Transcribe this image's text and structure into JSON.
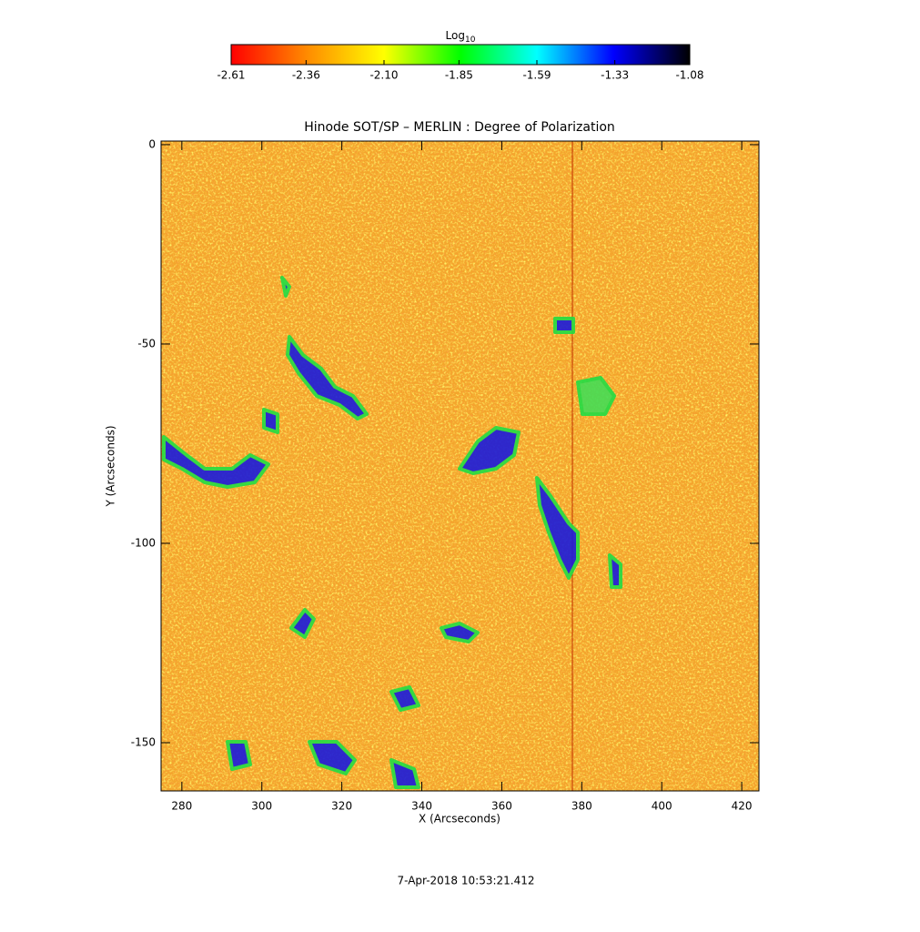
{
  "chart_data": {
    "type": "heatmap",
    "title": "Hinode SOT/SP – MERLIN : Degree of Polarization",
    "xlabel": "X (Arcseconds)",
    "ylabel": "Y (Arcseconds)",
    "xlim": [
      274.8,
      424.3
    ],
    "ylim": [
      -162.1,
      0.9
    ],
    "xticks": [
      280,
      300,
      320,
      340,
      360,
      380,
      400,
      420
    ],
    "yticks": [
      0,
      -50,
      -100,
      -150
    ],
    "colorbar": {
      "label": "Log",
      "label_sub": "10",
      "lim": [
        -2.61,
        -1.08
      ],
      "ticks": [
        -2.61,
        -2.36,
        {
          "value": -2.1,
          "label": "-2.10"
        },
        -1.85,
        -1.59,
        -1.33,
        -1.08
      ],
      "colormap": [
        "#ff0000",
        "#ff8c00",
        "#ffff00",
        "#00ff00",
        "#00ffff",
        "#0000ff",
        "#000000"
      ]
    },
    "footer": "7-Apr-2018 10:53:21.412"
  }
}
